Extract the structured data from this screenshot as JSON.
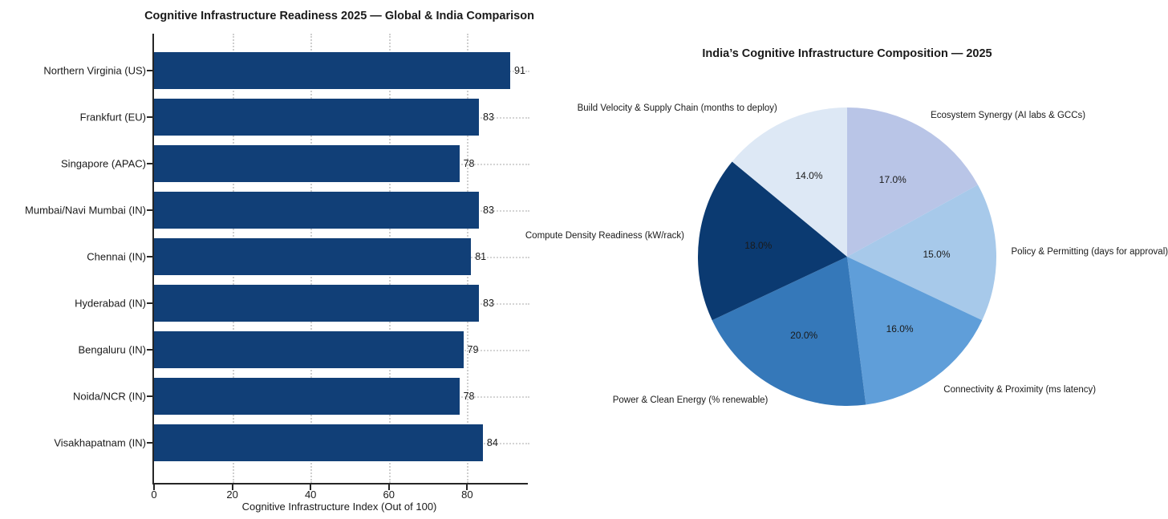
{
  "chart_data": [
    {
      "type": "bar",
      "orientation": "horizontal",
      "title": "Cognitive Infrastructure Readiness 2025 — Global & India Comparison",
      "xlabel": "Cognitive Infrastructure Index (Out of 100)",
      "categories": [
        "Northern Virginia (US)",
        "Frankfurt (EU)",
        "Singapore (APAC)",
        "Mumbai/Navi Mumbai (IN)",
        "Chennai (IN)",
        "Hyderabad (IN)",
        "Bengaluru (IN)",
        "Noida/NCR (IN)",
        "Visakhapatnam (IN)"
      ],
      "values": [
        91,
        83,
        78,
        83,
        81,
        83,
        79,
        78,
        84
      ],
      "xticks": [
        0,
        20,
        40,
        60,
        80
      ],
      "xlim": [
        0,
        95.5
      ],
      "bar_color": "#113f77",
      "grid": "dotted-gray",
      "grid_color": "#cfcfcf",
      "value_labels_shown": true
    },
    {
      "type": "pie",
      "title": "India’s Cognitive Infrastructure Composition — 2025",
      "labels": [
        "Ecosystem Synergy (AI labs & GCCs)",
        "Policy & Permitting (days for approval)",
        "Connectivity & Proximity (ms latency)",
        "Power & Clean Energy (% renewable)",
        "Compute Density Readiness (kW/rack)",
        "Build Velocity & Supply Chain (months to deploy)"
      ],
      "values": [
        17,
        15,
        16,
        20,
        18,
        14
      ],
      "percent_labels": [
        "17.0%",
        "15.0%",
        "16.0%",
        "20.0%",
        "18.0%",
        "14.0%"
      ],
      "colors": [
        "#b9c5e7",
        "#a7c9ea",
        "#5f9ed9",
        "#3578b9",
        "#0b3a71",
        "#dde8f5"
      ],
      "start_angle_deg": 90,
      "direction": "clockwise",
      "legend": "none"
    }
  ]
}
